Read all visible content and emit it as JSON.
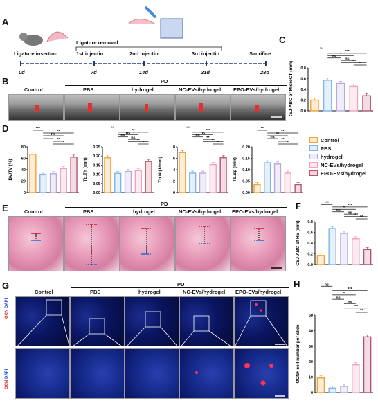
{
  "panels": {
    "A": "A",
    "B": "B",
    "C": "C",
    "D": "D",
    "E": "E",
    "F": "F",
    "G": "G",
    "H": "H"
  },
  "timeline": {
    "ligature_removal": "Ligature removal",
    "ligature_insertion": "Ligature insertion",
    "injection1": "1st injectin",
    "injection2": "2nd injectin",
    "injection3": "3rd injectin",
    "sacrifice": "Sacrifice",
    "days": [
      "0d",
      "7d",
      "14d",
      "21d",
      "28d"
    ]
  },
  "groups": [
    "Control",
    "PBS",
    "hydrogel",
    "NC-EVs/hydrogel",
    "EPO-EVs/hydrogel"
  ],
  "pd_label": "PD",
  "legend": [
    {
      "name": "Control",
      "color": "#f4a234"
    },
    {
      "name": "PBS",
      "color": "#7fb5e8"
    },
    {
      "name": "hydrogel",
      "color": "#b7a9e0"
    },
    {
      "name": "NC-EVs/hydrogel",
      "color": "#f2a0c0"
    },
    {
      "name": "EPO-EVs/hydrogel",
      "color": "#b8536e"
    }
  ],
  "stain_labels": {
    "ocn": "OCN",
    "dapi": "DAPI"
  },
  "chart_data": [
    {
      "id": "C",
      "type": "bar",
      "ylabel": "CEJ-ABC of MicroCT (mm)",
      "ylim": [
        0,
        0.8
      ],
      "yticks": [
        "0.0",
        "0.2",
        "0.4",
        "0.6",
        "0.8"
      ],
      "values": [
        0.2,
        0.57,
        0.51,
        0.46,
        0.28
      ],
      "sig": [
        "**",
        "***",
        "*",
        "ns",
        "ns",
        "***",
        "**"
      ]
    },
    {
      "id": "D1",
      "type": "bar",
      "ylabel": "BV/TV (%)",
      "ylim": [
        0,
        80
      ],
      "yticks": [
        "0",
        "20",
        "40",
        "60",
        "80"
      ],
      "values": [
        67,
        32,
        33,
        42,
        62
      ],
      "sig": [
        "***",
        "**",
        "ns",
        "*",
        "**",
        "*"
      ]
    },
    {
      "id": "D2",
      "type": "bar",
      "ylabel": "Tb.Th (mm)",
      "ylim": [
        0,
        0.25
      ],
      "yticks": [
        "0.00",
        "0.05",
        "0.10",
        "0.15",
        "0.20",
        "0.25"
      ],
      "values": [
        0.19,
        0.105,
        0.115,
        0.12,
        0.17
      ],
      "sig": [
        "**",
        "**",
        "ns",
        "ns",
        "ns",
        "**",
        "*"
      ]
    },
    {
      "id": "D3",
      "type": "bar",
      "ylabel": "Tb.N (1/mm)",
      "ylim": [
        0,
        8
      ],
      "yticks": [
        "0",
        "2",
        "4",
        "6",
        "8"
      ],
      "values": [
        7,
        3.4,
        3.4,
        4.9,
        6.1
      ],
      "sig": [
        "***",
        "***",
        "ns",
        "ns",
        "**",
        "**",
        "*"
      ]
    },
    {
      "id": "D4",
      "type": "bar",
      "ylabel": "Tb.Sp (mm)",
      "ylim": [
        0,
        0.2
      ],
      "yticks": [
        "0.00",
        "0.05",
        "0.10",
        "0.15",
        "0.20"
      ],
      "values": [
        0.035,
        0.13,
        0.125,
        0.085,
        0.035
      ],
      "sig": [
        "**",
        "**",
        "**",
        "ns",
        "**",
        "*"
      ]
    },
    {
      "id": "F",
      "type": "bar",
      "ylabel": "CEJ-ABC of HE (mm)",
      "ylim": [
        0,
        0.8
      ],
      "yticks": [
        "0.0",
        "0.2",
        "0.4",
        "0.6",
        "0.8"
      ],
      "values": [
        0.17,
        0.67,
        0.58,
        0.48,
        0.28
      ],
      "sig": [
        "***",
        "***",
        "*",
        "ns",
        "ns",
        "***",
        "**"
      ]
    },
    {
      "id": "H",
      "type": "bar",
      "ylabel": "OCN+ cell number per slide",
      "ylim": [
        0,
        50
      ],
      "yticks": [
        "0",
        "10",
        "20",
        "30",
        "40",
        "50"
      ],
      "values": [
        9.5,
        3,
        4,
        18,
        36
      ],
      "sig": [
        "ns",
        "***",
        "*",
        "ns",
        "ns",
        "***",
        "**"
      ]
    }
  ]
}
